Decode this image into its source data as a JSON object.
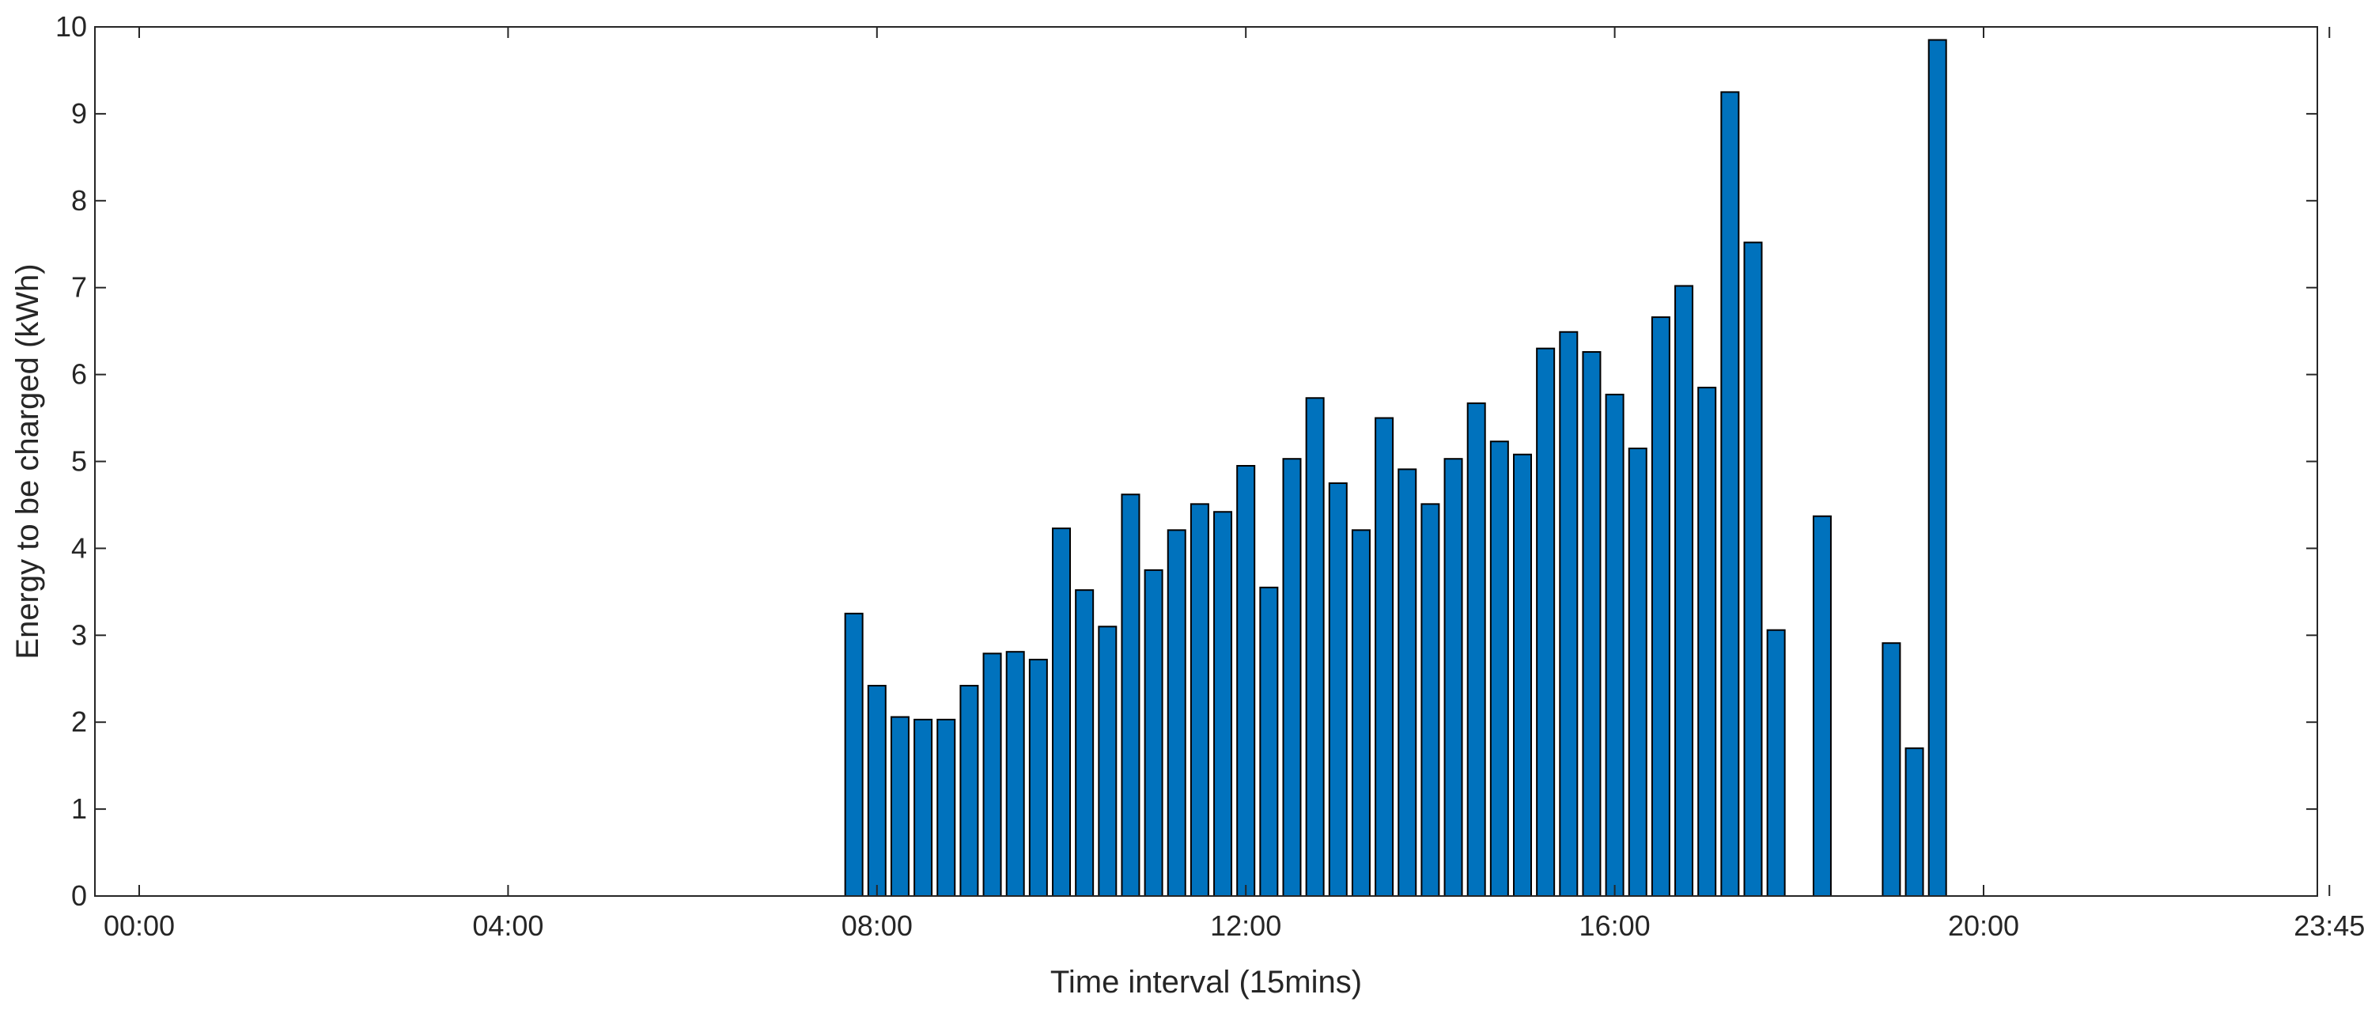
{
  "chart_data": {
    "type": "bar",
    "xlabel": "Time interval (15mins)",
    "ylabel": "Energy to be charged (kWh)",
    "xlim": [
      0,
      95
    ],
    "ylim": [
      0,
      10
    ],
    "x_ticks": [
      {
        "slot": 0,
        "label": "00:00"
      },
      {
        "slot": 16,
        "label": "04:00"
      },
      {
        "slot": 32,
        "label": "08:00"
      },
      {
        "slot": 48,
        "label": "12:00"
      },
      {
        "slot": 64,
        "label": "16:00"
      },
      {
        "slot": 80,
        "label": "20:00"
      },
      {
        "slot": 95,
        "label": "23:45"
      }
    ],
    "y_ticks": [
      0,
      1,
      2,
      3,
      4,
      5,
      6,
      7,
      8,
      9,
      10
    ],
    "bar_color": "#0072BD",
    "edge_color": "#000000",
    "series": [
      {
        "values": [
          0,
          0,
          0,
          0,
          0,
          0,
          0,
          0,
          0,
          0,
          0,
          0,
          0,
          0,
          0,
          0,
          0,
          0,
          0,
          0,
          0,
          0,
          0,
          0,
          0,
          0,
          0,
          0,
          0,
          0,
          0,
          3.25,
          2.42,
          2.06,
          2.03,
          2.03,
          2.42,
          2.79,
          2.81,
          2.72,
          4.23,
          3.52,
          3.1,
          4.62,
          3.75,
          4.21,
          4.51,
          4.42,
          4.95,
          3.55,
          5.03,
          5.73,
          4.75,
          4.21,
          5.5,
          4.91,
          4.51,
          5.03,
          5.67,
          5.23,
          5.08,
          6.3,
          6.49,
          6.26,
          5.77,
          5.15,
          6.66,
          7.02,
          5.85,
          9.25,
          7.52,
          3.06,
          0,
          4.37,
          0,
          0,
          2.91,
          1.7,
          9.85,
          0,
          0,
          0,
          0,
          0,
          0,
          0,
          0,
          0,
          0,
          0,
          0,
          0,
          0,
          0,
          0,
          0
        ]
      }
    ]
  }
}
